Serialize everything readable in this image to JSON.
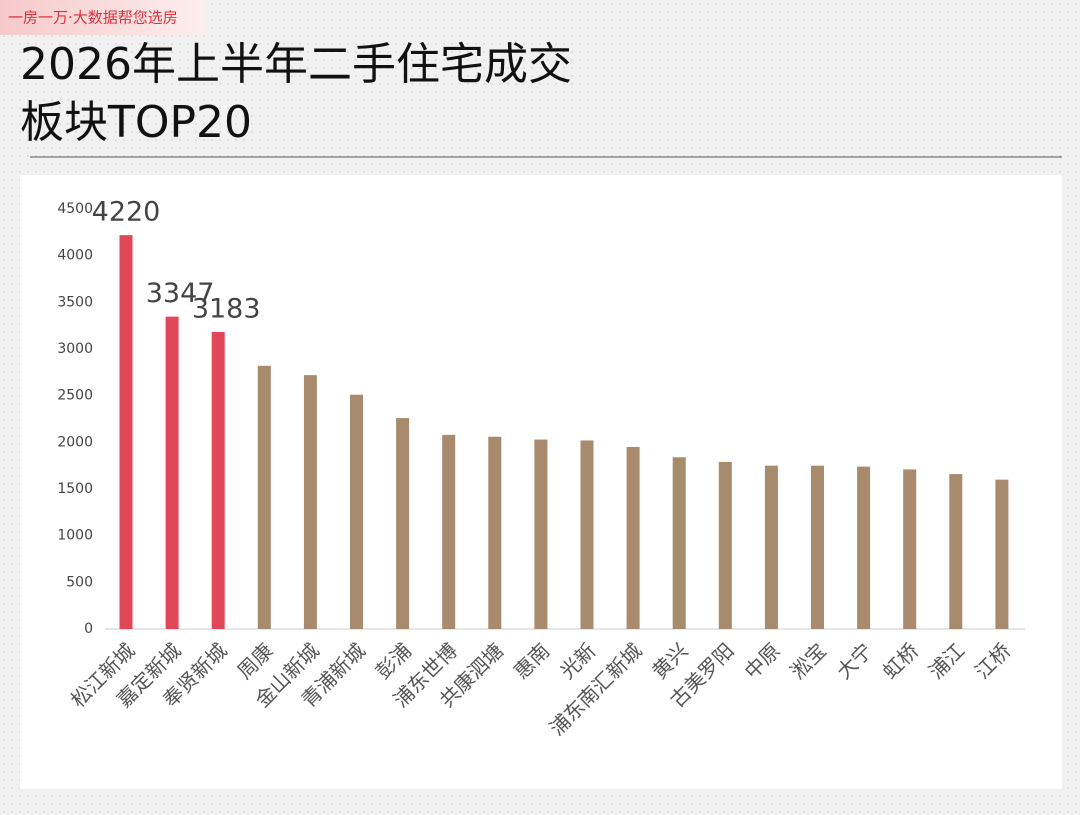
{
  "header": {
    "tag": "一房一万·大数据帮您选房"
  },
  "chart_data": {
    "type": "bar",
    "title": [
      "2026年上半年二手住宅成交",
      "板块TOP20"
    ],
    "categories": [
      "松江新城",
      "嘉定新城",
      "奉贤新城",
      "周康",
      "金山新城",
      "青浦新城",
      "彭浦",
      "浦东世博",
      "共康泗塘",
      "惠南",
      "光新",
      "浦东南汇新城",
      "黄兴",
      "古美罗阳",
      "中原",
      "淞宝",
      "大宁",
      "虹桥",
      "浦江",
      "江桥"
    ],
    "values": [
      4220,
      3347,
      3183,
      2820,
      2720,
      2510,
      2260,
      2080,
      2060,
      2030,
      2020,
      1950,
      1840,
      1790,
      1750,
      1750,
      1740,
      1710,
      1660,
      1600
    ],
    "color": "#a88a6c",
    "highlight_color": "#e0485a",
    "highlight_count": 3,
    "ylim": [
      0,
      4500
    ],
    "yticks": [
      0,
      500,
      1000,
      1500,
      2000,
      2500,
      3000,
      3500,
      4000,
      4500
    ],
    "grid": false
  }
}
